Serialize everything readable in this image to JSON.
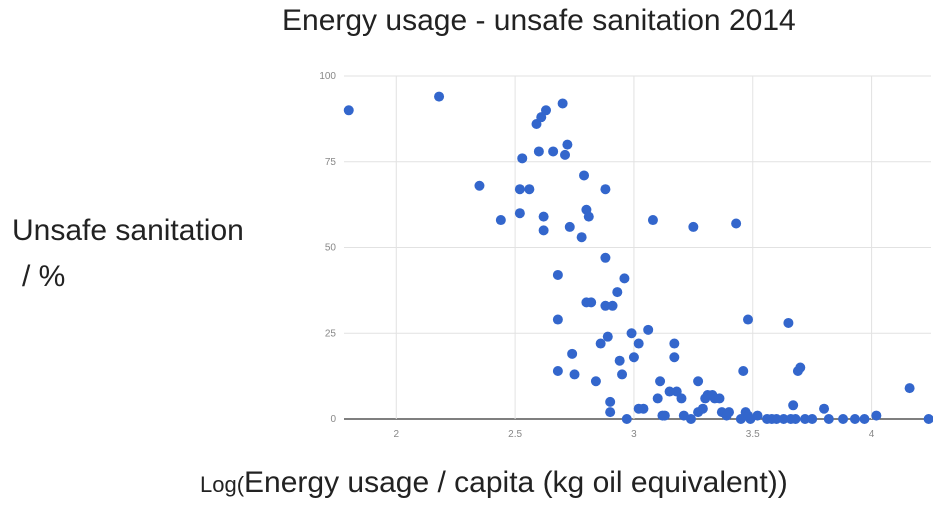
{
  "chart_data": {
    "type": "scatter",
    "title": "Energy usage - unsafe sanitation 2014",
    "ylabel_line1": "Unsafe sanitation",
    "ylabel_line2": "/ %",
    "xlabel_prefix": "Log(",
    "xlabel_main": "Energy usage / capita (kg oil equivalent)",
    "xlabel_suffix": ")",
    "xlim": [
      1.78,
      4.25
    ],
    "ylim": [
      0,
      100
    ],
    "x_ticks": [
      "2",
      "2.5",
      "3",
      "3.5",
      "4"
    ],
    "y_ticks": [
      "0",
      "25",
      "50",
      "75",
      "100"
    ],
    "grid": true,
    "point_color": "#3366cc",
    "points": [
      [
        1.8,
        90
      ],
      [
        2.18,
        94
      ],
      [
        2.35,
        68
      ],
      [
        2.44,
        58
      ],
      [
        2.52,
        67
      ],
      [
        2.52,
        60
      ],
      [
        2.53,
        76
      ],
      [
        2.56,
        67
      ],
      [
        2.59,
        86
      ],
      [
        2.6,
        78
      ],
      [
        2.61,
        88
      ],
      [
        2.62,
        55
      ],
      [
        2.62,
        59
      ],
      [
        2.63,
        90
      ],
      [
        2.66,
        78
      ],
      [
        2.68,
        42
      ],
      [
        2.68,
        29
      ],
      [
        2.68,
        14
      ],
      [
        2.7,
        92
      ],
      [
        2.71,
        77
      ],
      [
        2.72,
        80
      ],
      [
        2.73,
        56
      ],
      [
        2.74,
        19
      ],
      [
        2.75,
        13
      ],
      [
        2.78,
        53
      ],
      [
        2.79,
        71
      ],
      [
        2.8,
        61
      ],
      [
        2.8,
        34
      ],
      [
        2.81,
        59
      ],
      [
        2.82,
        34
      ],
      [
        2.84,
        11
      ],
      [
        2.86,
        22
      ],
      [
        2.88,
        47
      ],
      [
        2.88,
        67
      ],
      [
        2.88,
        33
      ],
      [
        2.89,
        24
      ],
      [
        2.9,
        5
      ],
      [
        2.9,
        2
      ],
      [
        2.91,
        33
      ],
      [
        2.93,
        37
      ],
      [
        2.94,
        17
      ],
      [
        2.95,
        13
      ],
      [
        2.96,
        41
      ],
      [
        2.97,
        0
      ],
      [
        2.99,
        25
      ],
      [
        3.0,
        18
      ],
      [
        3.02,
        3
      ],
      [
        3.02,
        22
      ],
      [
        3.04,
        3
      ],
      [
        3.06,
        26
      ],
      [
        3.08,
        58
      ],
      [
        3.1,
        6
      ],
      [
        3.11,
        11
      ],
      [
        3.12,
        1
      ],
      [
        3.13,
        1
      ],
      [
        3.15,
        8
      ],
      [
        3.17,
        22
      ],
      [
        3.17,
        18
      ],
      [
        3.18,
        8
      ],
      [
        3.2,
        6
      ],
      [
        3.21,
        1
      ],
      [
        3.24,
        0
      ],
      [
        3.25,
        56
      ],
      [
        3.27,
        11
      ],
      [
        3.27,
        2
      ],
      [
        3.29,
        3
      ],
      [
        3.3,
        6
      ],
      [
        3.31,
        7
      ],
      [
        3.33,
        7
      ],
      [
        3.34,
        6
      ],
      [
        3.36,
        6
      ],
      [
        3.37,
        2
      ],
      [
        3.39,
        1
      ],
      [
        3.4,
        2
      ],
      [
        3.43,
        57
      ],
      [
        3.45,
        0
      ],
      [
        3.46,
        14
      ],
      [
        3.47,
        2
      ],
      [
        3.48,
        29
      ],
      [
        3.48,
        1
      ],
      [
        3.49,
        0
      ],
      [
        3.52,
        1
      ],
      [
        3.56,
        0
      ],
      [
        3.58,
        0
      ],
      [
        3.6,
        0
      ],
      [
        3.63,
        0
      ],
      [
        3.65,
        28
      ],
      [
        3.66,
        0
      ],
      [
        3.67,
        4
      ],
      [
        3.68,
        0
      ],
      [
        3.69,
        14
      ],
      [
        3.7,
        15
      ],
      [
        3.72,
        0
      ],
      [
        3.75,
        0
      ],
      [
        3.8,
        3
      ],
      [
        3.82,
        0
      ],
      [
        3.88,
        0
      ],
      [
        3.93,
        0
      ],
      [
        3.97,
        0
      ],
      [
        4.02,
        1
      ],
      [
        4.16,
        9
      ],
      [
        4.24,
        0
      ]
    ]
  }
}
